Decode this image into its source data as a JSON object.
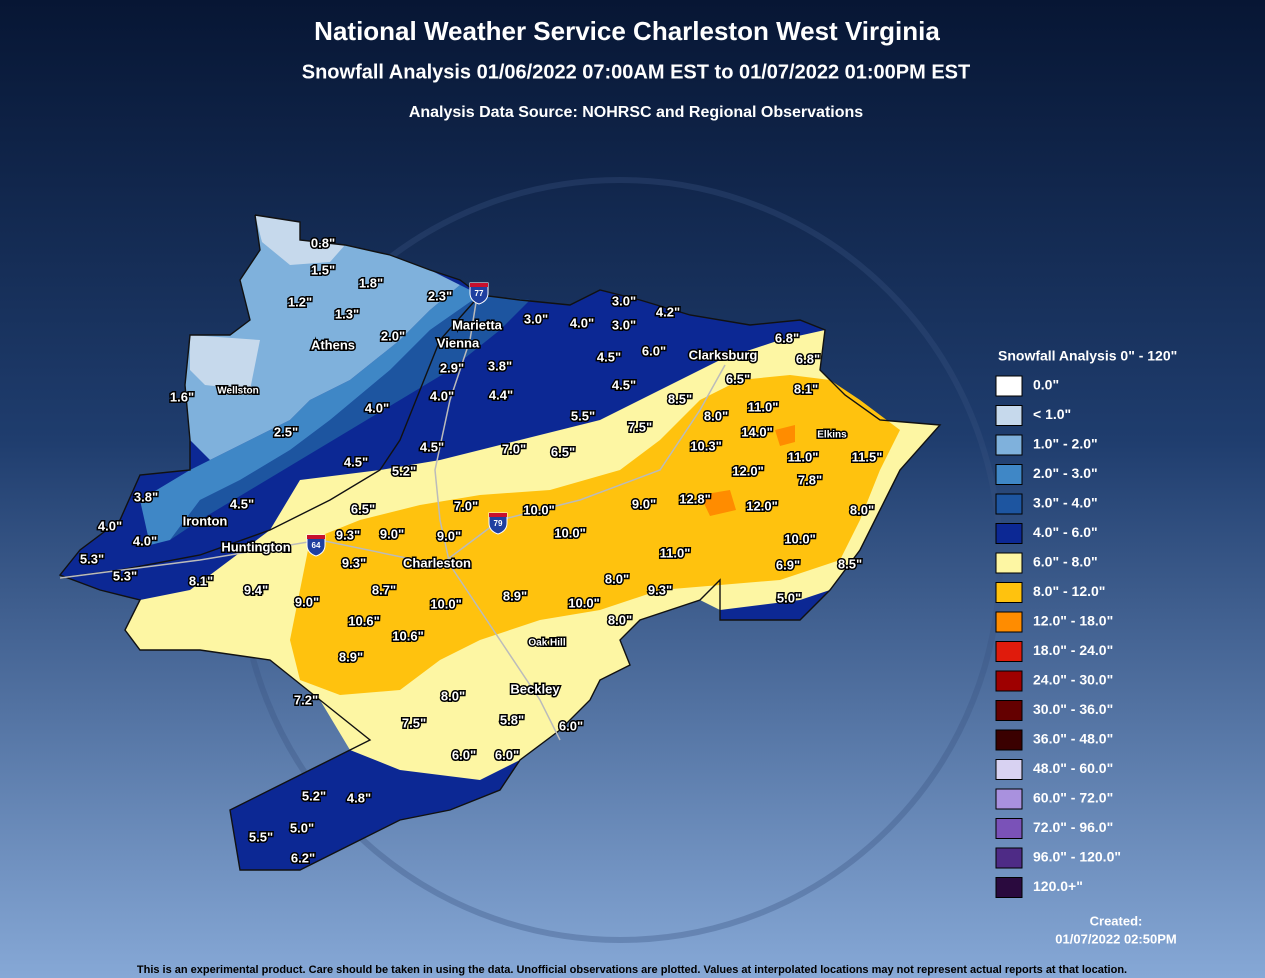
{
  "header": {
    "title": "National Weather Service Charleston West Virginia",
    "subtitle": "Snowfall Analysis 01/06/2022 07:00AM EST to 01/07/2022 01:00PM EST",
    "source": "Analysis Data Source: NOHRSC and Regional Observations"
  },
  "cities": [
    "Marietta",
    "Vienna",
    "Athens",
    "Wellston",
    "Clarksburg",
    "Elkins",
    "Ironton",
    "Huntington",
    "Charleston",
    "Oak Hill",
    "Beckley"
  ],
  "highways": [
    "77",
    "79",
    "64"
  ],
  "observations": [
    "0.8\"",
    "1.5\"",
    "1.8\"",
    "2.3\"",
    "1.2\"",
    "1.3\"",
    "2.0\"",
    "3.0\"",
    "4.0\"",
    "3.0\"",
    "3.0\"",
    "4.2\"",
    "6.8\"",
    "6.8\"",
    "6.0\"",
    "4.5\"",
    "2.9\"",
    "3.8\"",
    "4.5\"",
    "6.5\"",
    "8.1\"",
    "1.6\"",
    "4.0\"",
    "4.4\"",
    "8.5\"",
    "4.0\"",
    "5.5\"",
    "8.0\"",
    "11.0\"",
    "2.5\"",
    "7.5\"",
    "10.3\"",
    "14.0\"",
    "4.5\"",
    "7.0\"",
    "6.5\"",
    "11.0\"",
    "11.5\"",
    "4.5\"",
    "5.2\"",
    "12.0\"",
    "7.8\"",
    "3.8\"",
    "7.0\"",
    "12.8\"",
    "9.0\"",
    "12.0\"",
    "8.0\"",
    "4.5\"",
    "6.5\"",
    "10.0\"",
    "4.0\"",
    "9.3\"",
    "9.0\"",
    "9.0\"",
    "10.0\"",
    "10.0\"",
    "4.0\"",
    "11.0\"",
    "9.3\"",
    "6.9\"",
    "8.5\"",
    "5.3\"",
    "5.3\"",
    "8.1\"",
    "8.7\"",
    "8.0\"",
    "9.3\"",
    "9.4\"",
    "10.0\"",
    "8.9\"",
    "10.0\"",
    "5.0\"",
    "9.0\"",
    "10.6\"",
    "8.0\"",
    "10.6\"",
    "8.9\"",
    "7.2\"",
    "8.0\"",
    "7.5\"",
    "5.8\"",
    "6.0\"",
    "6.0\"",
    "6.0\"",
    "5.2\"",
    "4.8\"",
    "5.0\"",
    "5.5\"",
    "6.2\""
  ],
  "legend": {
    "title": "Snowfall Analysis 0\" - 120\"",
    "items": [
      {
        "label": "0.0\"",
        "color": "#ffffff"
      },
      {
        "label": "< 1.0\"",
        "color": "#c6d9ec"
      },
      {
        "label": "1.0\" - 2.0\"",
        "color": "#7fb1dc"
      },
      {
        "label": "2.0\" - 3.0\"",
        "color": "#3f87c6"
      },
      {
        "label": "3.0\" - 4.0\"",
        "color": "#1d55a0"
      },
      {
        "label": "4.0\" - 6.0\"",
        "color": "#0c2894"
      },
      {
        "label": "6.0\" - 8.0\"",
        "color": "#fdf6a3"
      },
      {
        "label": "8.0\" - 12.0\"",
        "color": "#ffc20e"
      },
      {
        "label": "12.0\" - 18.0\"",
        "color": "#ff8c00"
      },
      {
        "label": "18.0\" - 24.0\"",
        "color": "#e01b0c"
      },
      {
        "label": "24.0\" - 30.0\"",
        "color": "#9e0000"
      },
      {
        "label": "30.0\" - 36.0\"",
        "color": "#640000"
      },
      {
        "label": "36.0\" - 48.0\"",
        "color": "#3a0000"
      },
      {
        "label": "48.0\" - 60.0\"",
        "color": "#d8d2f2"
      },
      {
        "label": "60.0\" - 72.0\"",
        "color": "#a991de"
      },
      {
        "label": "72.0\" - 96.0\"",
        "color": "#7a52b8"
      },
      {
        "label": "96.0\" - 120.0\"",
        "color": "#4e2b86"
      },
      {
        "label": "120.0+\"",
        "color": "#2a0a3e"
      }
    ]
  },
  "created": {
    "label": "Created:",
    "date": "01/07/2022 02:50PM"
  },
  "footer": "This is an experimental product. Care should be taken in using the data. Unofficial observations are plotted. Values at interpolated locations may not represent actual reports at that location."
}
